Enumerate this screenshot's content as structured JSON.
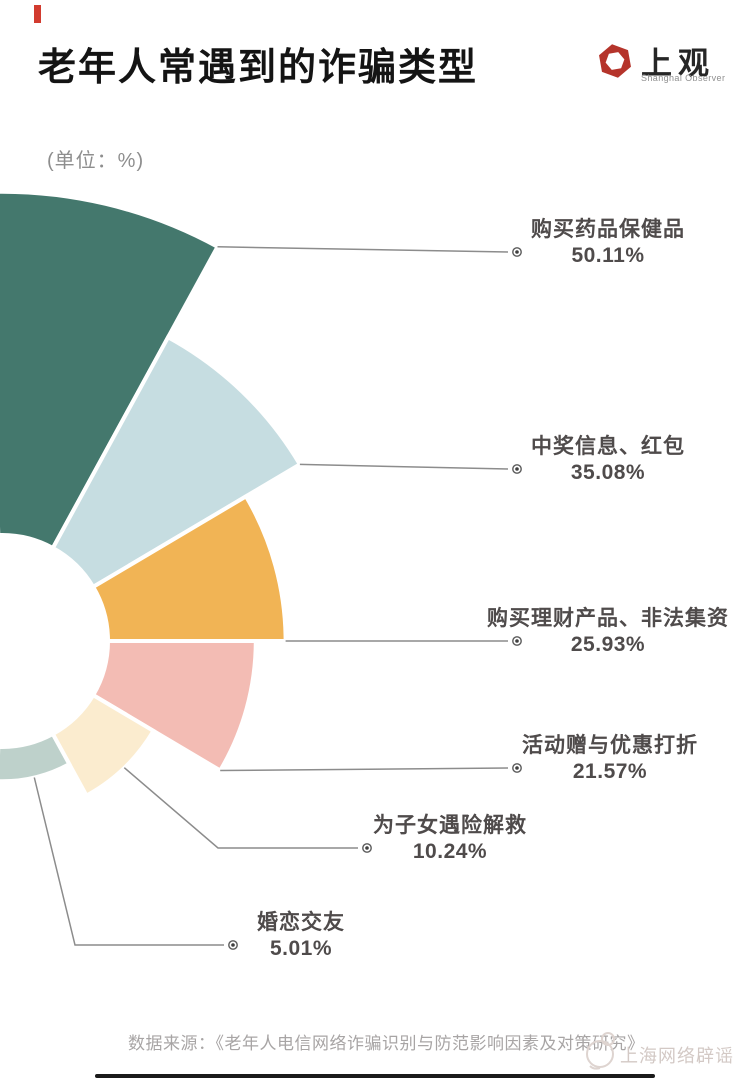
{
  "header": {
    "title": "老年人常遇到的诈骗类型",
    "logo": {
      "brand": "上观",
      "subtitle": "Shanghai Observer",
      "hex_color": "#b5342b"
    }
  },
  "unit_note": "(单位：%)",
  "chart_data": {
    "type": "rose",
    "title": "老年人常遇到的诈骗类型",
    "unit": "%",
    "categories": [
      "购买药品保健品",
      "中奖信息、红包",
      "购买理财产品、非法集资",
      "活动赠与优惠打折",
      "为子女遇险解救",
      "婚恋交友"
    ],
    "values": [
      50.11,
      35.08,
      25.93,
      21.57,
      10.24,
      5.01
    ],
    "value_labels": [
      "50.11%",
      "35.08%",
      "25.93%",
      "21.57%",
      "10.24%",
      "5.01%"
    ],
    "colors": [
      "#44786d",
      "#c6dde1",
      "#f1b455",
      "#f3bcb4",
      "#fbeccf",
      "#bed1cb"
    ],
    "leader_line_color": "#8c8c8c",
    "label_text_color": "#4f4b4b",
    "layout": {
      "start_angle_deg": -92,
      "sector_span_deg": 30.67,
      "inner_radius_px": 106,
      "radius_px_per_percent": 6.85,
      "center_cut_by_left_edge": true,
      "legend": "none",
      "labels": "leader-lines-right"
    }
  },
  "footer": {
    "source": "数据来源：《老年人电信网络诈骗识别与防范影响因素及对策研究》",
    "watermark": "上海网络辟谣"
  }
}
